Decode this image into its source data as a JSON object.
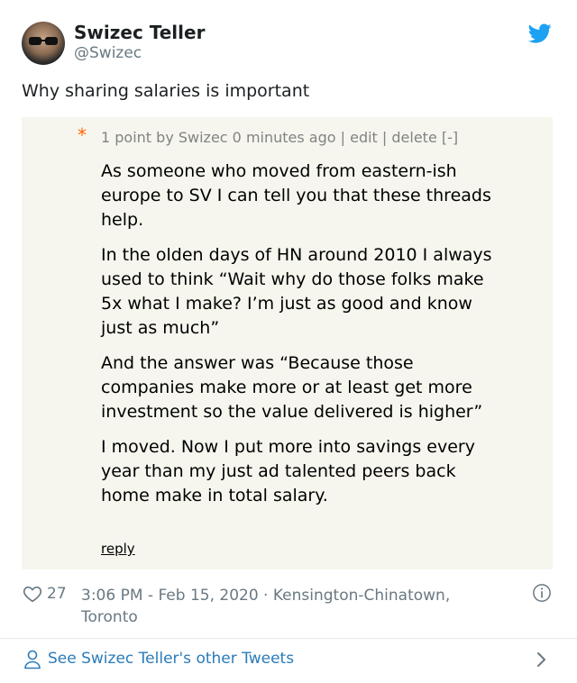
{
  "tweet": {
    "author_name": "Swizec Teller",
    "author_handle": "@Swizec",
    "text": "Why sharing salaries is important",
    "like_count": "27",
    "timestamp": "3:06 PM - Feb 15, 2020 · Kensington-Chinatown, Toronto",
    "see_more": "See Swizec Teller's other Tweets"
  },
  "hn_comment": {
    "star": "*",
    "meta": "1 point by Swizec 0 minutes ago | edit | delete [-]",
    "paragraphs": [
      "As someone who moved from eastern-ish europe to SV I can tell you that these threads help.",
      "In the olden days of HN around 2010 I always used to think “Wait why do those folks make 5x what I make? I’m just as good and know just as much”",
      "And the answer was “Because those companies make more or at least get more investment so the value delivered is higher”",
      "I moved. Now I put more into savings every year than my just ad talented peers back home make in total salary."
    ],
    "reply": "reply"
  },
  "colors": {
    "twitter_blue": "#1da1f2",
    "link_blue": "#2b7bb9",
    "meta_gray": "#697882",
    "hn_background": "#f6f6ef",
    "hn_orange": "#ff6600"
  },
  "icons": {
    "logo": "twitter-bird-icon",
    "like": "heart-icon",
    "info": "info-icon",
    "profile": "person-icon",
    "more": "chevron-right-icon"
  }
}
